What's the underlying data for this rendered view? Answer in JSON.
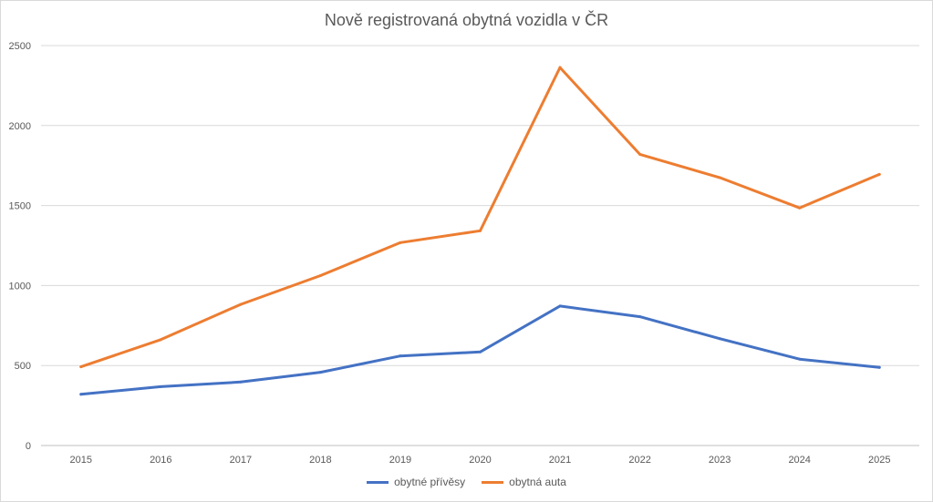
{
  "chart_data": {
    "type": "line",
    "title": "Nově registrovaná obytná vozidla v ČR",
    "xlabel": "",
    "ylabel": "",
    "categories": [
      "2015",
      "2016",
      "2017",
      "2018",
      "2019",
      "2020",
      "2021",
      "2022",
      "2023",
      "2024",
      "2025"
    ],
    "ylim": [
      0,
      2500
    ],
    "yticks": [
      "0",
      "500",
      "1000",
      "1500",
      "2000",
      "2500"
    ],
    "grid": true,
    "legend_position": "bottom",
    "series": [
      {
        "name": "obytné přívěsy",
        "color": "#4472c4",
        "values": [
          320,
          368,
          397,
          458,
          560,
          585,
          872,
          805,
          668,
          540,
          488
        ]
      },
      {
        "name": "obytná auta",
        "color": "#ed7d31",
        "values": [
          492,
          662,
          882,
          1062,
          1268,
          1342,
          2363,
          1820,
          1675,
          1485,
          1695
        ]
      }
    ]
  }
}
